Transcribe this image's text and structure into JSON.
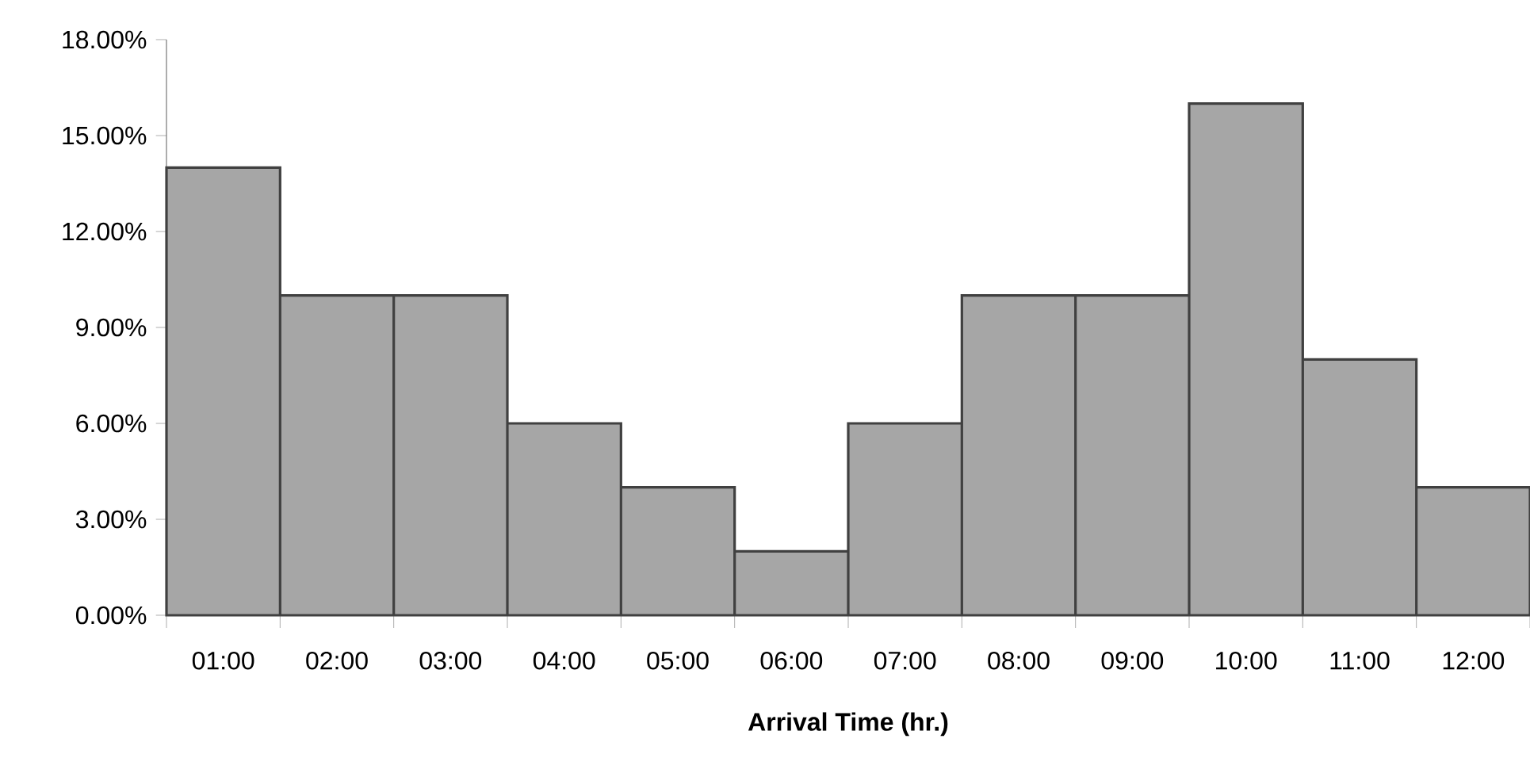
{
  "chart_data": {
    "type": "bar",
    "categories": [
      "01:00",
      "02:00",
      "03:00",
      "04:00",
      "05:00",
      "06:00",
      "07:00",
      "08:00",
      "09:00",
      "10:00",
      "11:00",
      "12:00"
    ],
    "values": [
      14,
      10,
      10,
      6,
      4,
      2,
      6,
      10,
      10,
      16,
      8,
      4
    ],
    "color": "#a6a6a6",
    "xlabel": "Arrival Time (hr.)",
    "ylim": [
      0,
      18
    ],
    "yticks": [
      {
        "value": 0,
        "label": "0.00%"
      },
      {
        "value": 3,
        "label": "3.00%"
      },
      {
        "value": 6,
        "label": "6.00%"
      },
      {
        "value": 9,
        "label": "9.00%"
      },
      {
        "value": 12,
        "label": "12.00%"
      },
      {
        "value": 15,
        "label": "15.00%"
      },
      {
        "value": 18,
        "label": "18.00%"
      }
    ]
  }
}
